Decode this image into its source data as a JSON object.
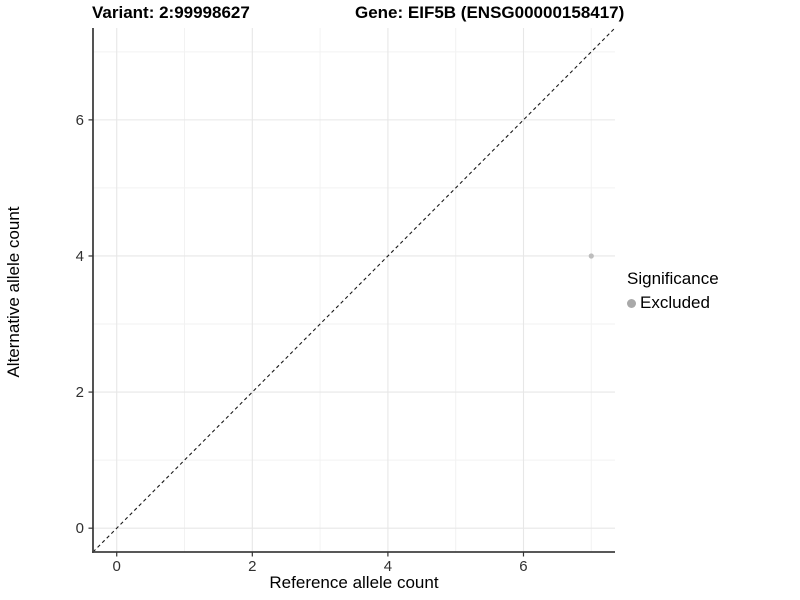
{
  "chart_data": {
    "type": "scatter",
    "title_variant": "Variant: 2:99998627",
    "title_gene": "Gene: EIF5B (ENSG00000158417)",
    "xlabel": "Reference allele count",
    "ylabel": "Alternative allele count",
    "xlim": [
      -0.35,
      7.35
    ],
    "ylim": [
      -0.35,
      7.35
    ],
    "xticks": [
      0,
      2,
      4,
      6
    ],
    "yticks": [
      0,
      2,
      4,
      6
    ],
    "xticks_minor": [
      1,
      3,
      5,
      7
    ],
    "yticks_minor": [
      1,
      3,
      5,
      7
    ],
    "grid": "major+minor",
    "reference_line": {
      "slope": 1,
      "intercept": 0,
      "style": "dashed",
      "color": "#1a1a1a"
    },
    "series": [
      {
        "name": "Excluded",
        "color": "#bdbdbd",
        "points": [
          {
            "x": 7,
            "y": 4
          }
        ]
      }
    ],
    "legend": {
      "title": "Significance",
      "position": "right",
      "items": [
        {
          "label": "Excluded",
          "color": "#a9a9a9"
        }
      ]
    },
    "colors": {
      "background": "#ffffff",
      "grid_major": "#e7e7e7",
      "grid_minor": "#f2f2f2",
      "axis_line": "#404040",
      "tick_mark": "#333333",
      "tick_label": "#303030"
    }
  }
}
